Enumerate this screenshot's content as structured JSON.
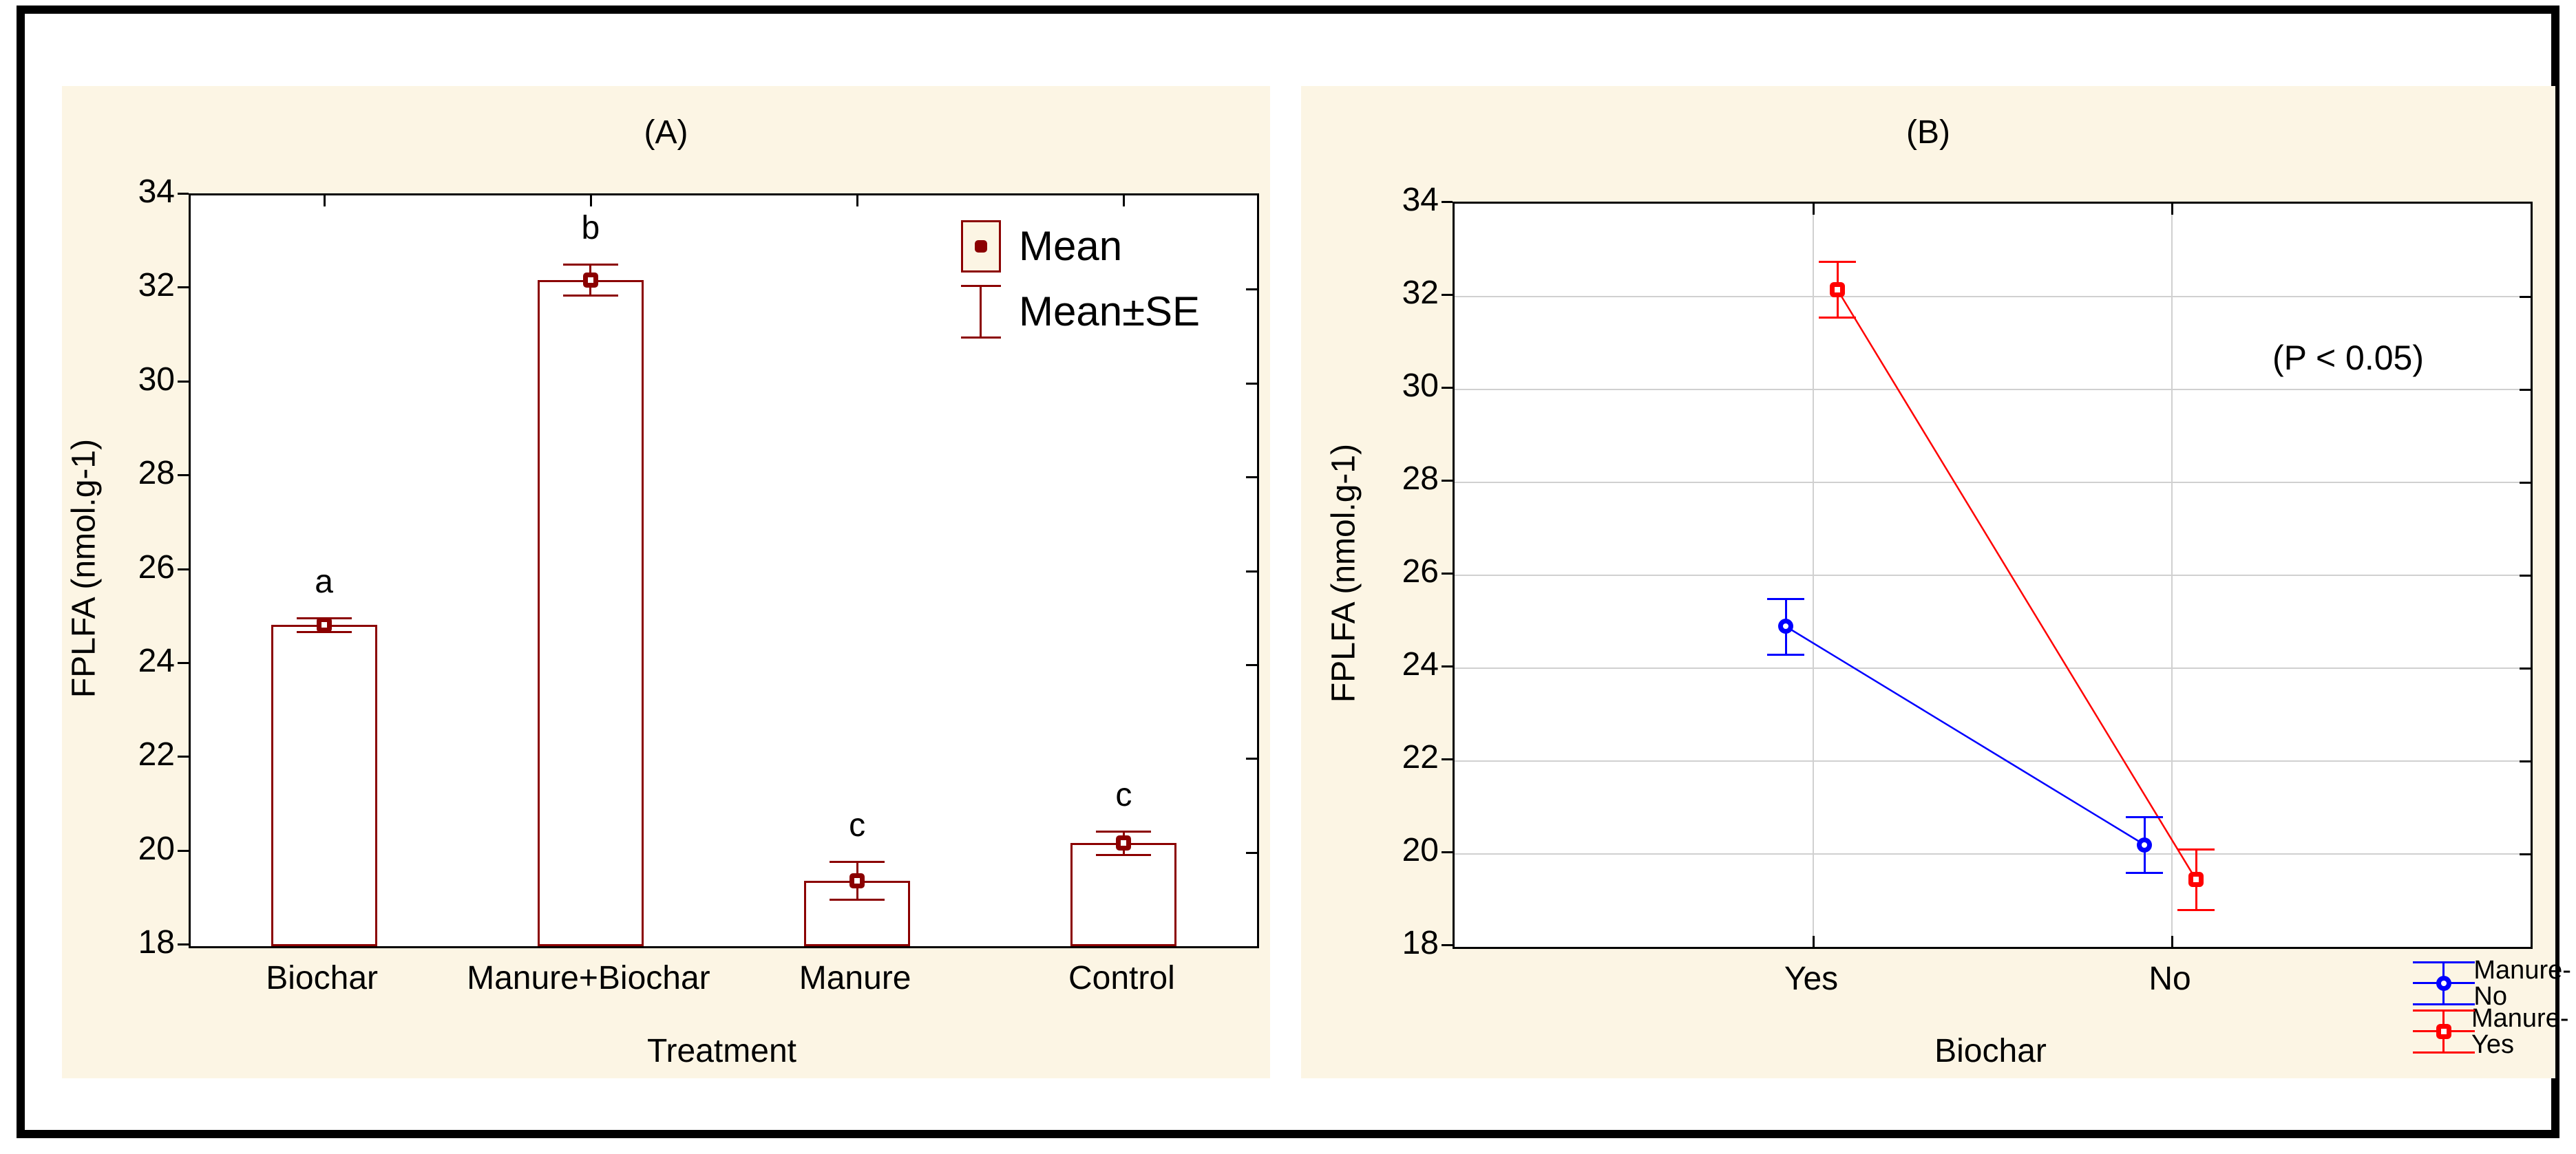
{
  "figure": {
    "panel_background": "#FCF5E4",
    "border_color": "#000000"
  },
  "chart_data": [
    {
      "type": "bar",
      "title": "(A)",
      "ylabel": "FPLFA (nmol.g-1)",
      "xlabel": "Treatment",
      "ylim": [
        18,
        34
      ],
      "yticks": [
        34,
        32,
        30,
        28,
        26,
        24,
        22,
        20,
        18
      ],
      "grid": false,
      "categories": [
        "Biochar",
        "Manure+Biochar",
        "Manure",
        "Control"
      ],
      "means": [
        24.85,
        32.2,
        19.4,
        20.2
      ],
      "se": [
        0.15,
        0.33,
        0.4,
        0.25
      ],
      "sig_letters": [
        "a",
        "b",
        "c",
        "c"
      ],
      "legend_position": "top-right",
      "legend": {
        "items": [
          {
            "label": "Mean"
          },
          {
            "label": "Mean±SE"
          }
        ]
      },
      "colors": {
        "accent": "#8B0000",
        "bar_fill": "#FFFFFF"
      }
    },
    {
      "type": "line",
      "title": "(B)",
      "annotation": "(P < 0.05)",
      "ylabel": "FPLFA (nmol.g-1)",
      "xlabel": "Biochar",
      "ylim": [
        18,
        34
      ],
      "yticks": [
        34,
        32,
        30,
        28,
        26,
        24,
        22,
        20,
        18
      ],
      "grid": true,
      "categories": [
        "Yes",
        "No"
      ],
      "series": [
        {
          "name": "Manure-No",
          "color": "#0000FF",
          "marker": "circle",
          "values": [
            24.9,
            20.2
          ],
          "se": [
            0.6,
            0.6
          ]
        },
        {
          "name": "Manure-Yes",
          "color": "#FF0000",
          "marker": "square",
          "values": [
            32.15,
            19.45
          ],
          "se": [
            0.6,
            0.65
          ]
        }
      ],
      "legend_position": "right",
      "colors": {
        "gridline": "#D0D0D0"
      }
    }
  ]
}
